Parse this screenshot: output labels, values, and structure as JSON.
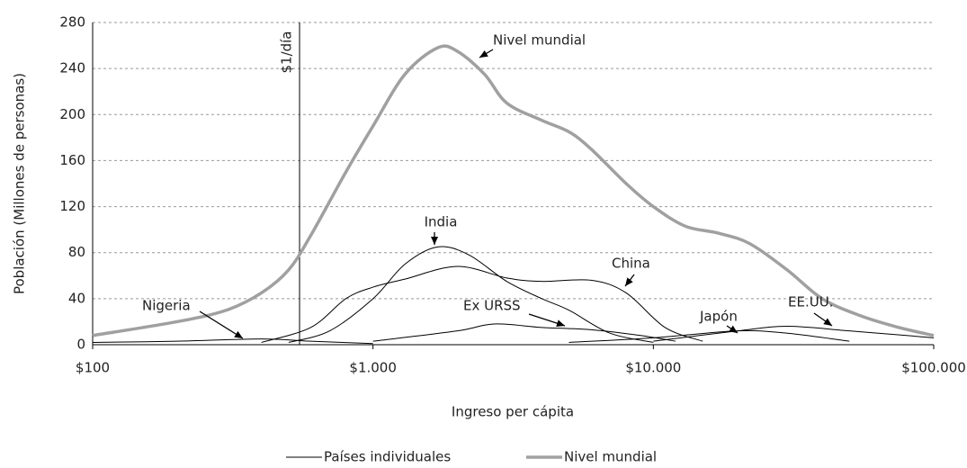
{
  "chart_data": {
    "type": "line",
    "y_label": "Población (Millones de personas)",
    "x_label": "Ingreso per cápita",
    "log_x": true,
    "grid": true,
    "xlim": [
      100,
      100000
    ],
    "xticks": [
      {
        "value": 100,
        "label": "$100"
      },
      {
        "value": 1000,
        "label": "$1.000"
      },
      {
        "value": 10000,
        "label": "$10.000"
      },
      {
        "value": 100000,
        "label": "$100.000"
      }
    ],
    "ylim": [
      0,
      280
    ],
    "yticks": [
      0,
      40,
      80,
      120,
      160,
      200,
      240,
      280
    ],
    "vline": {
      "x": 547,
      "label": "$1/día"
    },
    "legend": [
      {
        "name": "Países individuales",
        "color": "#000000"
      },
      {
        "name": "Nivel mundial",
        "color": "#a0a0a0"
      }
    ],
    "series": [
      {
        "label": "Nivel mundial",
        "color": "#a0a0a0",
        "x": [
          100,
          200,
          300,
          400,
          500,
          600,
          800,
          1000,
          1300,
          1700,
          2000,
          2500,
          3000,
          4000,
          5000,
          6000,
          8000,
          10000,
          13000,
          17000,
          22000,
          30000,
          40000,
          55000,
          75000,
          100000
        ],
        "values": [
          8,
          20,
          30,
          45,
          65,
          95,
          150,
          190,
          235,
          258,
          255,
          235,
          210,
          195,
          185,
          170,
          140,
          120,
          103,
          97,
          88,
          65,
          40,
          25,
          15,
          8
        ]
      },
      {
        "label": "India",
        "color": "#000000",
        "x": [
          500,
          700,
          1000,
          1300,
          1700,
          2200,
          3000,
          4000,
          5000,
          7000,
          10000
        ],
        "values": [
          2,
          12,
          40,
          70,
          85,
          78,
          55,
          40,
          30,
          10,
          2
        ]
      },
      {
        "label": "China",
        "color": "#000000",
        "x": [
          400,
          600,
          800,
          1000,
          1300,
          2000,
          3000,
          4000,
          6000,
          8000,
          11000,
          15000
        ],
        "values": [
          2,
          15,
          40,
          50,
          57,
          68,
          58,
          55,
          56,
          45,
          15,
          3
        ]
      },
      {
        "label": "Ex URSS",
        "color": "#000000",
        "x": [
          1000,
          2000,
          2700,
          4000,
          6000,
          9000,
          12000
        ],
        "values": [
          3,
          12,
          18,
          15,
          13,
          8,
          3
        ]
      },
      {
        "label": "Japón",
        "color": "#000000",
        "x": [
          5000,
          10000,
          20000,
          30000,
          50000
        ],
        "values": [
          2,
          6,
          12,
          10,
          3
        ]
      },
      {
        "label": "EE.UU.",
        "color": "#000000",
        "x": [
          10000,
          20000,
          30000,
          50000,
          80000,
          100000
        ],
        "values": [
          3,
          12,
          16,
          12,
          8,
          6
        ]
      },
      {
        "label": "Nigeria",
        "color": "#000000",
        "x": [
          100,
          200,
          400,
          600,
          1000
        ],
        "values": [
          2,
          3,
          5,
          3,
          1
        ]
      }
    ]
  }
}
